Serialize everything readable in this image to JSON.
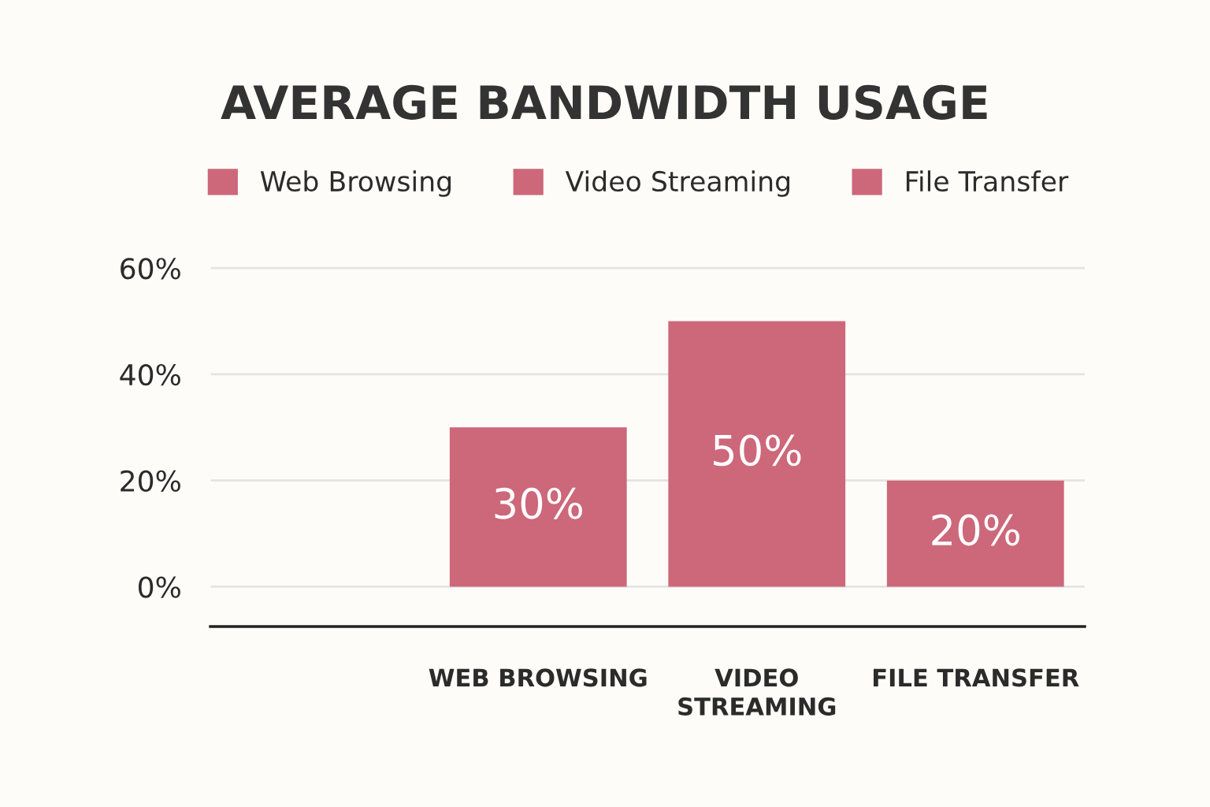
{
  "chart_data": {
    "type": "bar",
    "title": "AVERAGE BANDWIDTH USAGE",
    "categories": [
      null,
      "WEB BROWSING",
      "VIDEO\nSTREAMING",
      "FILE TRANSFER"
    ],
    "series": [
      {
        "name": "Web Browsing",
        "color": "#cd677a",
        "values": [
          null,
          30,
          null,
          null
        ],
        "value_labels": [
          null,
          "30%",
          null,
          null
        ]
      },
      {
        "name": "Video Streaming",
        "color": "#cd677a",
        "values": [
          null,
          null,
          50,
          null
        ],
        "value_labels": [
          null,
          null,
          "50%",
          null
        ]
      },
      {
        "name": "File Transfer",
        "color": "#cd677a",
        "values": [
          null,
          null,
          null,
          20
        ],
        "value_labels": [
          null,
          null,
          null,
          "20%"
        ]
      }
    ],
    "ylim": [
      -7.5,
      63
    ],
    "yticks": [
      {
        "value": 0,
        "label": "0%"
      },
      {
        "value": 20,
        "label": "20%"
      },
      {
        "value": 40,
        "label": "40%"
      },
      {
        "value": 60,
        "label": "60%"
      }
    ],
    "grid": "y",
    "legend": "top"
  }
}
